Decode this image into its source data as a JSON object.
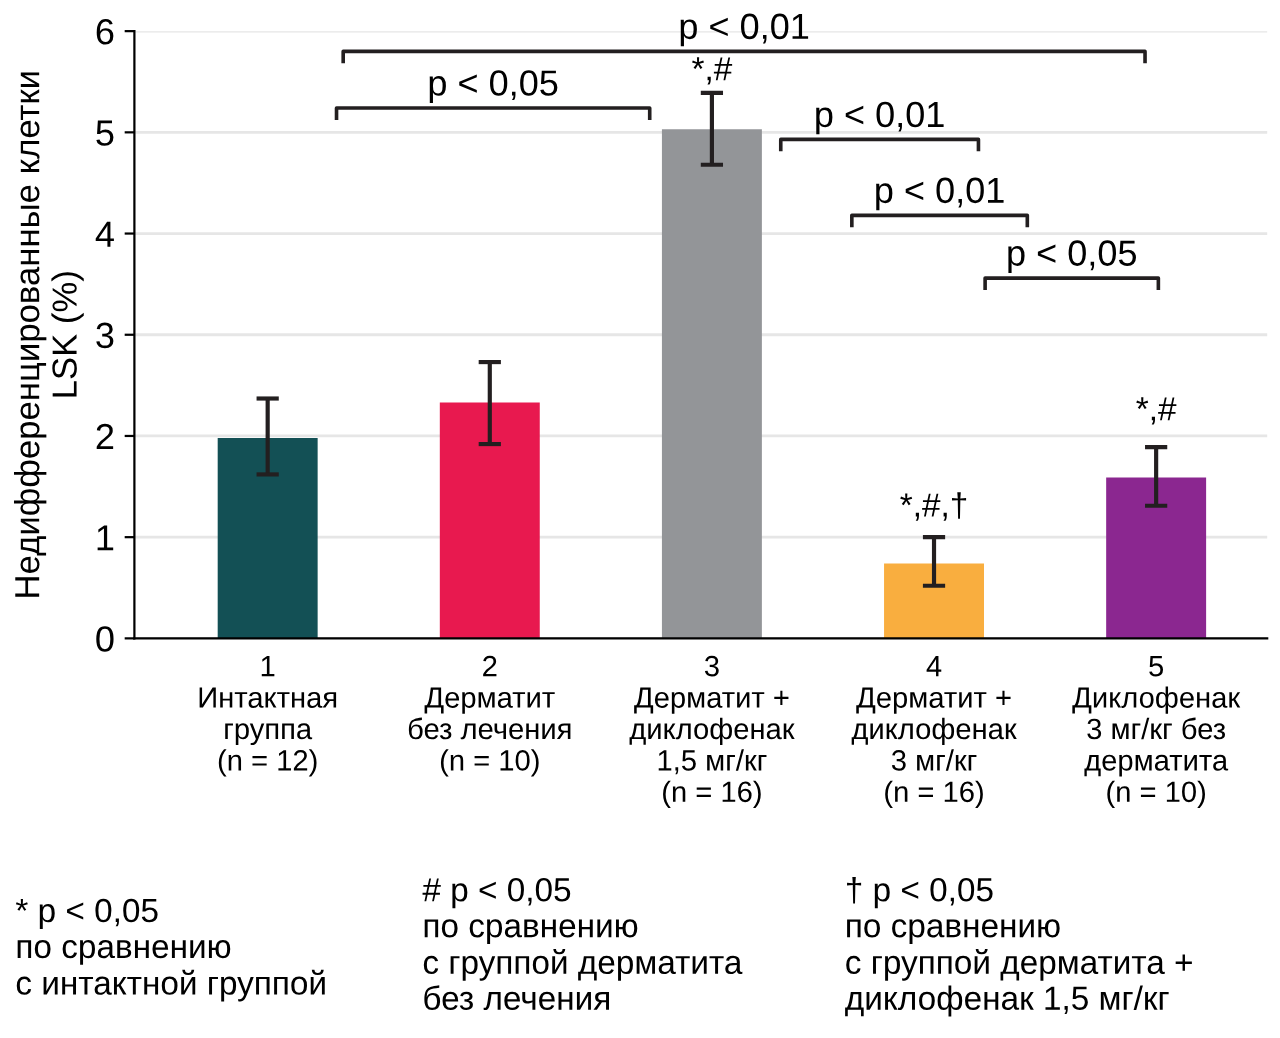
{
  "chart_data": {
    "type": "bar",
    "ylabel": "Недифференцированные клетки\nLSK (%)",
    "categories": [
      "1\nИнтактная\nгруппа\n(n = 12)",
      "2\nДерматит\nбез лечения\n(n = 10)",
      "3\nДерматит +\nдиклофенак\n1,5 мг/кг\n(n = 16)",
      "4\nДерматит +\nдиклофенак\n3 мг/кг\n(n = 16)",
      "5\nДиклофенак\n3 мг/кг без\nдерматита\n(n = 10)"
    ],
    "values": [
      1.98,
      2.33,
      5.03,
      0.74,
      1.59
    ],
    "colors": [
      "#135055",
      "#e8194f",
      "#939598",
      "#f9ae3f",
      "#8b2790"
    ],
    "errors": [
      [
        1.62,
        2.37
      ],
      [
        1.92,
        2.73
      ],
      [
        4.68,
        5.39
      ],
      [
        0.52,
        1.0
      ],
      [
        1.31,
        1.89
      ]
    ],
    "ylim": [
      0,
      6
    ],
    "yticks": [
      0,
      1,
      2,
      3,
      4,
      5,
      6
    ],
    "grid": "y",
    "annotations": [
      "p < 0,01",
      "p < 0,05",
      "p < 0,01",
      "p < 0,01",
      "p < 0,05",
      "* p < 0,05\nпо сравнению\nс интактной группой",
      "# p < 0,05\nпо сравнению\nс группой дерматита\nбез лечения",
      "† p < 0,05\nпо сравнению\nс группой дерматита +\nдиклофенак 1,5 мг/кг",
      "*,#",
      "*,#,†",
      "*,#"
    ]
  }
}
